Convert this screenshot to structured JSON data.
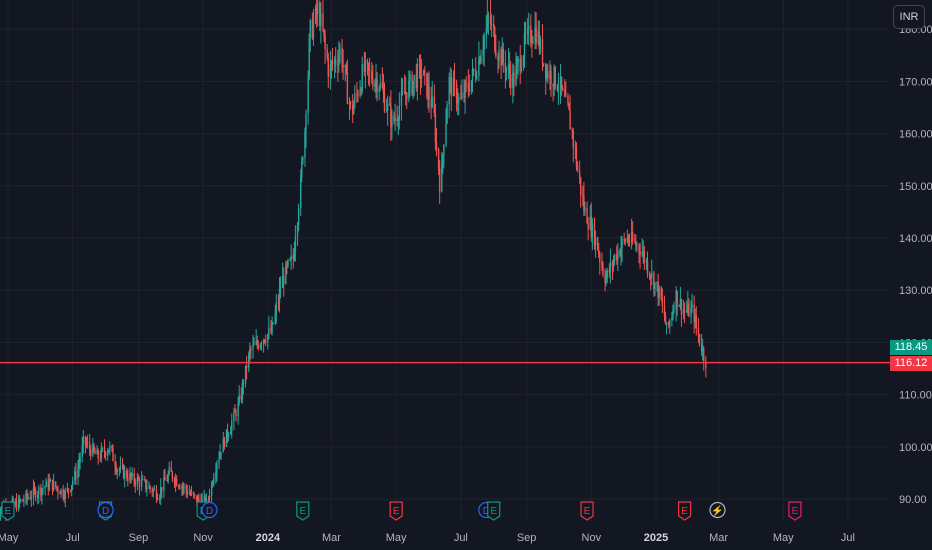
{
  "currency": "INR",
  "colors": {
    "background": "#131722",
    "grid": "#1f232e",
    "up": "#26a69a",
    "down": "#ef5350",
    "price_line": "#f23645",
    "last_price_tag": "#089981",
    "current_tag": "#f23645",
    "event_earnings": "#089981",
    "event_earnings_future": "#f23645",
    "event_dividend": "#2962ff"
  },
  "price_tags": {
    "last": "118.45",
    "current": "116.12"
  },
  "chart_data": {
    "type": "candlestick",
    "y_ticks": [
      "90.00",
      "100.00",
      "110.00",
      "120.00",
      "130.00",
      "140.00",
      "150.00",
      "160.00",
      "170.00",
      "180.00"
    ],
    "ylim": [
      87,
      184
    ],
    "x_ticks": [
      {
        "label": "May",
        "date": "2023-05-01",
        "bold": false
      },
      {
        "label": "Jul",
        "date": "2023-07-01",
        "bold": false
      },
      {
        "label": "Sep",
        "date": "2023-09-01",
        "bold": false
      },
      {
        "label": "Nov",
        "date": "2023-11-01",
        "bold": false
      },
      {
        "label": "2024",
        "date": "2024-01-01",
        "bold": true
      },
      {
        "label": "Mar",
        "date": "2024-03-01",
        "bold": false
      },
      {
        "label": "May",
        "date": "2024-05-01",
        "bold": false
      },
      {
        "label": "Jul",
        "date": "2024-07-01",
        "bold": false
      },
      {
        "label": "Sep",
        "date": "2024-09-01",
        "bold": false
      },
      {
        "label": "Nov",
        "date": "2024-11-01",
        "bold": false
      },
      {
        "label": "2025",
        "date": "2025-01-01",
        "bold": true
      },
      {
        "label": "Mar",
        "date": "2025-03-01",
        "bold": false
      },
      {
        "label": "May",
        "date": "2025-05-01",
        "bold": false
      },
      {
        "label": "Jul",
        "date": "2025-07-01",
        "bold": false
      }
    ],
    "price_line_value": 116.12,
    "price_path": [
      [
        "2023-04-20",
        88
      ],
      [
        "2023-05-10",
        89
      ],
      [
        "2023-05-25",
        91
      ],
      [
        "2023-06-10",
        93
      ],
      [
        "2023-06-25",
        91
      ],
      [
        "2023-07-05",
        95
      ],
      [
        "2023-07-12",
        101
      ],
      [
        "2023-07-25",
        98
      ],
      [
        "2023-08-05",
        100
      ],
      [
        "2023-08-12",
        96
      ],
      [
        "2023-08-25",
        94
      ],
      [
        "2023-09-05",
        93
      ],
      [
        "2023-09-20",
        91
      ],
      [
        "2023-10-01",
        95
      ],
      [
        "2023-10-15",
        92
      ],
      [
        "2023-10-25",
        90
      ],
      [
        "2023-11-05",
        89
      ],
      [
        "2023-11-15",
        98
      ],
      [
        "2023-11-25",
        103
      ],
      [
        "2023-12-05",
        108
      ],
      [
        "2023-12-15",
        118
      ],
      [
        "2023-12-28",
        121
      ],
      [
        "2024-01-05",
        122
      ],
      [
        "2024-01-15",
        132
      ],
      [
        "2024-01-25",
        136
      ],
      [
        "2024-02-01",
        150
      ],
      [
        "2024-02-05",
        160
      ],
      [
        "2024-02-10",
        179
      ],
      [
        "2024-02-18",
        184
      ],
      [
        "2024-02-28",
        172
      ],
      [
        "2024-03-10",
        176
      ],
      [
        "2024-03-20",
        164
      ],
      [
        "2024-04-01",
        172
      ],
      [
        "2024-04-15",
        170
      ],
      [
        "2024-04-28",
        162
      ],
      [
        "2024-05-10",
        168
      ],
      [
        "2024-05-25",
        172
      ],
      [
        "2024-06-05",
        165
      ],
      [
        "2024-06-12",
        150
      ],
      [
        "2024-06-20",
        170
      ],
      [
        "2024-07-01",
        166
      ],
      [
        "2024-07-15",
        172
      ],
      [
        "2024-07-28",
        182
      ],
      [
        "2024-08-05",
        176
      ],
      [
        "2024-08-20",
        170
      ],
      [
        "2024-09-01",
        178
      ],
      [
        "2024-09-10",
        180
      ],
      [
        "2024-09-20",
        172
      ],
      [
        "2024-10-01",
        170
      ],
      [
        "2024-10-12",
        163
      ],
      [
        "2024-10-25",
        146
      ],
      [
        "2024-11-05",
        140
      ],
      [
        "2024-11-15",
        132
      ],
      [
        "2024-11-25",
        137
      ],
      [
        "2024-12-05",
        140
      ],
      [
        "2024-12-18",
        138
      ],
      [
        "2024-12-28",
        133
      ],
      [
        "2025-01-05",
        129
      ],
      [
        "2025-01-12",
        122
      ],
      [
        "2025-01-20",
        129
      ],
      [
        "2025-01-28",
        126
      ],
      [
        "2025-02-05",
        126
      ],
      [
        "2025-02-12",
        120
      ],
      [
        "2025-02-18",
        116
      ]
    ]
  },
  "events": [
    {
      "kind": "earnings",
      "letter": "E",
      "date": "2023-05-01",
      "future": false
    },
    {
      "kind": "earnings",
      "letter": "E",
      "date": "2023-08-01",
      "future": false
    },
    {
      "kind": "dividend",
      "letter": "D",
      "date": "2023-08-01",
      "future": false
    },
    {
      "kind": "earnings",
      "letter": "E",
      "date": "2023-11-01",
      "future": false
    },
    {
      "kind": "dividend",
      "letter": "D",
      "date": "2023-11-07",
      "future": false
    },
    {
      "kind": "earnings",
      "letter": "E",
      "date": "2024-02-03",
      "future": false
    },
    {
      "kind": "earnings",
      "letter": "E",
      "date": "2024-05-01",
      "future": true
    },
    {
      "kind": "dividend",
      "letter": "D",
      "date": "2024-07-25",
      "future": false
    },
    {
      "kind": "earnings",
      "letter": "E",
      "date": "2024-08-01",
      "future": false
    },
    {
      "kind": "earnings",
      "letter": "E",
      "date": "2024-10-28",
      "future": true
    },
    {
      "kind": "earnings",
      "letter": "E",
      "date": "2025-01-28",
      "future": true
    },
    {
      "kind": "split",
      "letter": "⚡",
      "date": "2025-02-28",
      "future": true
    },
    {
      "kind": "earnings",
      "letter": "E",
      "date": "2025-05-12",
      "future": true,
      "color": "#e91e63"
    }
  ]
}
